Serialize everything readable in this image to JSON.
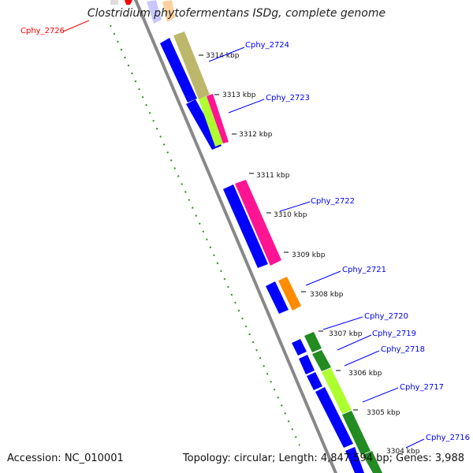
{
  "title": "Clostridium phytofermentans ISDg, complete genome",
  "footer": {
    "accession": "Accession: NC_010001",
    "summary": "Topology: circular; Length: 4,847,594 bp; Genes: 3,988"
  },
  "ticks": [
    "3314 kbp",
    "3313 kbp",
    "3312 kbp",
    "3311 kbp",
    "3310 kbp",
    "3309 kbp",
    "3308 kbp",
    "3307 kbp",
    "3306 kbp",
    "3305 kbp",
    "3304 kbp"
  ],
  "gene_labels": [
    "Cphy_2726",
    "Cphy_2724",
    "Cphy_2723",
    "Cphy_2722",
    "Cphy_2721",
    "Cphy_2720",
    "Cphy_2719",
    "Cphy_2718",
    "Cphy_2717",
    "Cphy_2716"
  ],
  "colors": {
    "forward_cds": "#0000ff",
    "backbone": "#808080",
    "dotted_ring": "#2e8b22",
    "label_line": "#0000ff",
    "highlight_label": "#ff0000",
    "olive": "#bdb76b",
    "magenta": "#ff1493",
    "lime": "#adff2f",
    "orange": "#ff8c00",
    "green": "#228b22"
  }
}
